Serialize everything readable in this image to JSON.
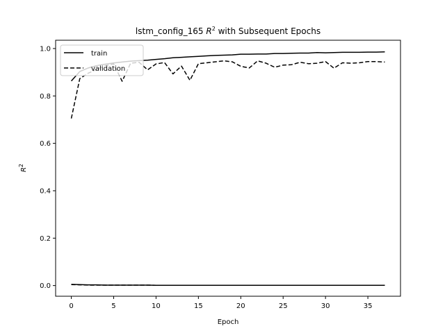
{
  "chart_data": {
    "type": "line",
    "title_main": "lstm_config_165 ",
    "title_var": "R",
    "title_sup": "2",
    "title_rest": " with Subsequent Epochs",
    "xlabel": "Epoch",
    "ylabel_var": "R",
    "ylabel_sup": "2",
    "xlim": [
      -1.85,
      38.85
    ],
    "ylim": [
      -0.045,
      1.035
    ],
    "xticks": [
      0,
      5,
      10,
      15,
      20,
      25,
      30,
      35
    ],
    "yticks": [
      0.0,
      0.2,
      0.4,
      0.6,
      0.8,
      1.0
    ],
    "ytick_labels": [
      "0.0",
      "0.2",
      "0.4",
      "0.6",
      "0.8",
      "1.0"
    ],
    "legend_position": "top-left",
    "color": "#000000",
    "series": [
      {
        "name": "train",
        "style": "solid",
        "x": [
          0,
          1,
          2,
          3,
          4,
          5,
          6,
          7,
          8,
          9,
          10,
          11,
          12,
          13,
          14,
          15,
          16,
          17,
          18,
          19,
          20,
          21,
          22,
          23,
          24,
          25,
          26,
          27,
          28,
          29,
          30,
          31,
          32,
          33,
          34,
          35,
          36,
          37
        ],
        "values": [
          0.863,
          0.903,
          0.918,
          0.928,
          0.934,
          0.939,
          0.943,
          0.947,
          0.949,
          0.951,
          0.954,
          0.957,
          0.961,
          0.963,
          0.965,
          0.967,
          0.969,
          0.971,
          0.972,
          0.973,
          0.976,
          0.976,
          0.977,
          0.977,
          0.979,
          0.979,
          0.98,
          0.981,
          0.981,
          0.983,
          0.982,
          0.983,
          0.984,
          0.984,
          0.984,
          0.985,
          0.985,
          0.986
        ]
      },
      {
        "name": "validation",
        "style": "dashed",
        "x": [
          0,
          1,
          2,
          3,
          4,
          5,
          6,
          7,
          8,
          9,
          10,
          11,
          12,
          13,
          14,
          15,
          16,
          17,
          18,
          19,
          20,
          21,
          22,
          23,
          24,
          25,
          26,
          27,
          28,
          29,
          30,
          31,
          32,
          33,
          34,
          35,
          36,
          37
        ],
        "values": [
          0.705,
          0.873,
          0.896,
          0.912,
          0.928,
          0.935,
          0.862,
          0.938,
          0.942,
          0.91,
          0.935,
          0.941,
          0.893,
          0.926,
          0.866,
          0.936,
          0.94,
          0.944,
          0.948,
          0.944,
          0.925,
          0.918,
          0.948,
          0.938,
          0.921,
          0.93,
          0.932,
          0.942,
          0.936,
          0.938,
          0.945,
          0.917,
          0.94,
          0.938,
          0.94,
          0.945,
          0.945,
          0.943
        ]
      },
      {
        "name": "",
        "style": "solid",
        "x": [
          0,
          1,
          2,
          3,
          4,
          5,
          6,
          7,
          8,
          9,
          10,
          11,
          12,
          13,
          14,
          15,
          16,
          17,
          18,
          19,
          20,
          21,
          22,
          23,
          24,
          25,
          26,
          27,
          28,
          29,
          30,
          31,
          32,
          33,
          34,
          35,
          36,
          37
        ],
        "values": [
          0.005,
          0.004,
          0.003,
          0.003,
          0.002,
          0.002,
          0.002,
          0.002,
          0.002,
          0.002,
          0.001,
          0.001,
          0.001,
          0.001,
          0.001,
          0.001,
          0.001,
          0.001,
          0.001,
          0.001,
          0.001,
          0.001,
          0.001,
          0.001,
          0.001,
          0.001,
          0.001,
          0.001,
          0.001,
          0.001,
          0.001,
          0.001,
          0.001,
          0.001,
          0.001,
          0.001,
          0.001,
          0.001
        ]
      },
      {
        "name": "",
        "style": "dashed",
        "x": [
          0,
          1,
          2,
          3,
          4,
          5,
          6,
          7,
          8,
          9,
          10,
          11,
          12,
          13,
          14,
          15,
          16,
          17,
          18,
          19,
          20,
          21,
          22,
          23,
          24,
          25,
          26,
          27,
          28,
          29,
          30,
          31,
          32,
          33,
          34,
          35,
          36,
          37
        ],
        "values": [
          0.004,
          0.003,
          0.002,
          0.002,
          0.002,
          0.002,
          0.002,
          0.002,
          0.002,
          0.002,
          0.001,
          0.001,
          0.001,
          0.001,
          0.001,
          0.001,
          0.001,
          0.001,
          0.001,
          0.001,
          0.001,
          0.001,
          0.001,
          0.001,
          0.001,
          0.001,
          0.001,
          0.001,
          0.001,
          0.001,
          0.001,
          0.001,
          0.001,
          0.001,
          0.001,
          0.001,
          0.001,
          0.001
        ]
      }
    ]
  }
}
